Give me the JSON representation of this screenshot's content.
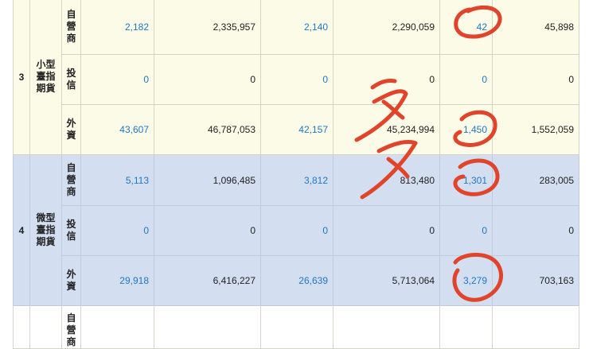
{
  "table": {
    "groups": [
      {
        "index": "3",
        "product": "小型臺指期貨",
        "rows": [
          {
            "type": "自營商",
            "c1": "2,182",
            "c2": "2,335,957",
            "c3": "2,140",
            "c4": "2,290,059",
            "c5": "42",
            "c6": "45,898"
          },
          {
            "type": "投信",
            "c1": "0",
            "c2": "0",
            "c3": "0",
            "c4": "0",
            "c5": "0",
            "c6": "0"
          },
          {
            "type": "外資",
            "c1": "43,607",
            "c2": "46,787,053",
            "c3": "42,157",
            "c4": "45,234,994",
            "c5": "1,450",
            "c6": "1,552,059"
          }
        ]
      },
      {
        "index": "4",
        "product": "微型臺指期貨",
        "rows": [
          {
            "type": "自營商",
            "c1": "5,113",
            "c2": "1,096,485",
            "c3": "3,812",
            "c4": "813,480",
            "c5": "1,301",
            "c6": "283,005"
          },
          {
            "type": "投信",
            "c1": "0",
            "c2": "0",
            "c3": "0",
            "c4": "0",
            "c5": "0",
            "c6": "0"
          },
          {
            "type": "外資",
            "c1": "29,918",
            "c2": "6,416,227",
            "c3": "26,639",
            "c4": "5,713,064",
            "c5": "3,279",
            "c6": "703,163"
          }
        ]
      }
    ],
    "tail_type": "自營商"
  },
  "annotation": {
    "color": "#e0452b",
    "handwriting": "多",
    "marks": [
      "circle-around-42",
      "circle-around-1450",
      "circle-around-1301",
      "circle-around-3279"
    ]
  }
}
